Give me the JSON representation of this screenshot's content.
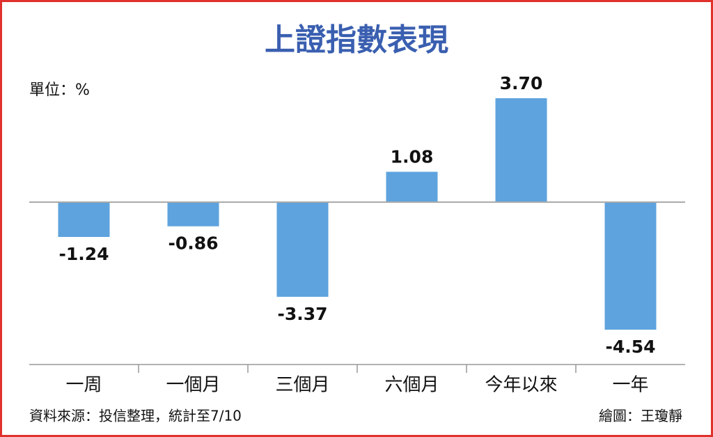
{
  "chart_data": {
    "type": "bar",
    "title": "上證指數表現",
    "unit_label": "單位：%",
    "categories": [
      "一周",
      "一個月",
      "三個月",
      "六個月",
      "今年以來",
      "一年"
    ],
    "values": [
      -1.24,
      -0.86,
      -3.37,
      1.08,
      3.7,
      -4.54
    ],
    "value_labels": [
      "-1.24",
      "-0.86",
      "-3.37",
      "1.08",
      "3.70",
      "-4.54"
    ],
    "color": "#5ea3de",
    "ylim": [
      -5.78,
      4.59
    ],
    "source": "資料來源：投信整理，統計至7/10",
    "credit": "繪圖：王瓊靜"
  }
}
